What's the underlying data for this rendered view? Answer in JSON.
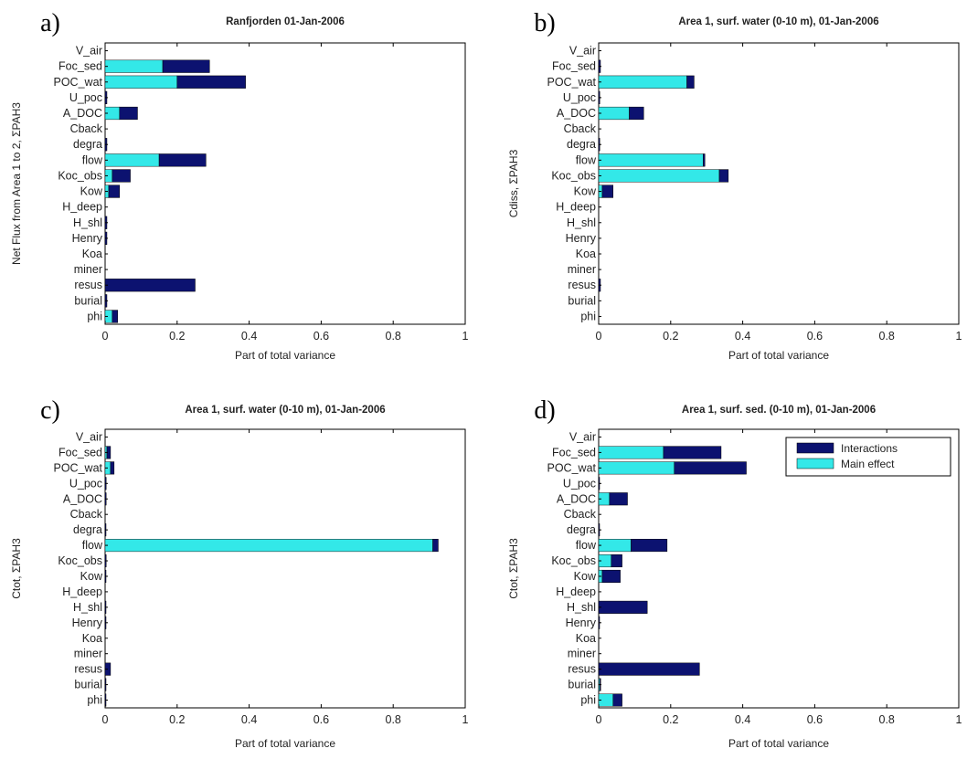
{
  "colors": {
    "main_effect": "#33e8e8",
    "interactions": "#0c1270",
    "axes": "#000000",
    "background": "#ffffff"
  },
  "chart_data": [
    {
      "type": "bar",
      "orientation": "horizontal",
      "stacked": true,
      "panel": "a)",
      "title": "Ranfjorden 01-Jan-2006",
      "xlabel": "Part of total variance",
      "ylabel": "Net Flux from Area 1 to 2, ΣPAH3",
      "xlim": [
        0,
        1
      ],
      "xticks": [
        "0",
        "0.2",
        "0.4",
        "0.6",
        "0.8",
        "1"
      ],
      "categories": [
        "V_air",
        "Foc_sed",
        "POC_wat",
        "U_poc",
        "A_DOC",
        "Cback",
        "degra",
        "flow",
        "Koc_obs",
        "Kow",
        "H_deep",
        "H_shl",
        "Henry",
        "Koa",
        "miner",
        "resus",
        "burial",
        "phi"
      ],
      "series": [
        {
          "role": "main",
          "values": [
            0,
            0.16,
            0.2,
            0,
            0.04,
            0,
            0,
            0.15,
            0.02,
            0.01,
            0,
            0,
            0,
            0,
            0,
            0,
            0,
            0.02
          ]
        },
        {
          "role": "interactions",
          "values": [
            0,
            0.13,
            0.19,
            0.005,
            0.05,
            0,
            0.005,
            0.13,
            0.05,
            0.03,
            0,
            0.005,
            0.005,
            0,
            0,
            0.25,
            0.005,
            0.015
          ]
        }
      ],
      "grid": false
    },
    {
      "type": "bar",
      "orientation": "horizontal",
      "stacked": true,
      "panel": "b)",
      "title": "Area 1, surf. water (0-10 m), 01-Jan-2006",
      "xlabel": "Part of total variance",
      "ylabel": "Cdiss, ΣPAH3",
      "xlim": [
        0,
        1
      ],
      "xticks": [
        "0",
        "0.2",
        "0.4",
        "0.6",
        "0.8",
        "1"
      ],
      "categories": [
        "V_air",
        "Foc_sed",
        "POC_wat",
        "U_poc",
        "A_DOC",
        "Cback",
        "degra",
        "flow",
        "Koc_obs",
        "Kow",
        "H_deep",
        "H_shl",
        "Henry",
        "Koa",
        "miner",
        "resus",
        "burial",
        "phi"
      ],
      "series": [
        {
          "role": "main",
          "values": [
            0,
            0,
            0.245,
            0,
            0.085,
            0,
            0,
            0.29,
            0.335,
            0.01,
            0,
            0,
            0,
            0,
            0,
            0,
            0,
            0
          ]
        },
        {
          "role": "interactions",
          "values": [
            0,
            0.005,
            0.02,
            0.003,
            0.04,
            0,
            0.003,
            0.005,
            0.025,
            0.03,
            0,
            0,
            0,
            0,
            0,
            0.005,
            0,
            0
          ]
        }
      ],
      "grid": false
    },
    {
      "type": "bar",
      "orientation": "horizontal",
      "stacked": true,
      "panel": "c)",
      "title": "Area 1, surf. water (0-10 m), 01-Jan-2006",
      "xlabel": "Part of total variance",
      "ylabel": "Ctot, ΣPAH3",
      "xlim": [
        0,
        1
      ],
      "xticks": [
        "0",
        "0.2",
        "0.4",
        "0.6",
        "0.8",
        "1"
      ],
      "categories": [
        "V_air",
        "Foc_sed",
        "POC_wat",
        "U_poc",
        "A_DOC",
        "Cback",
        "degra",
        "flow",
        "Koc_obs",
        "Kow",
        "H_deep",
        "H_shl",
        "Henry",
        "Koa",
        "miner",
        "resus",
        "burial",
        "phi"
      ],
      "series": [
        {
          "role": "main",
          "values": [
            0,
            0.005,
            0.015,
            0,
            0,
            0,
            0,
            0.91,
            0,
            0,
            0,
            0,
            0,
            0,
            0,
            0,
            0,
            0
          ]
        },
        {
          "role": "interactions",
          "values": [
            0,
            0.01,
            0.01,
            0.003,
            0.003,
            0,
            0.002,
            0.015,
            0.003,
            0.002,
            0,
            0.002,
            0.002,
            0,
            0,
            0.015,
            0.002,
            0.002
          ]
        }
      ],
      "grid": false
    },
    {
      "type": "bar",
      "orientation": "horizontal",
      "stacked": true,
      "panel": "d)",
      "title": "Area 1, surf. sed. (0-10 m), 01-Jan-2006",
      "xlabel": "Part of total variance",
      "ylabel": "Ctot, ΣPAH3",
      "xlim": [
        0,
        1
      ],
      "xticks": [
        "0",
        "0.2",
        "0.4",
        "0.6",
        "0.8",
        "1"
      ],
      "categories": [
        "V_air",
        "Foc_sed",
        "POC_wat",
        "U_poc",
        "A_DOC",
        "Cback",
        "degra",
        "flow",
        "Koc_obs",
        "Kow",
        "H_deep",
        "H_shl",
        "Henry",
        "Koa",
        "miner",
        "resus",
        "burial",
        "phi"
      ],
      "series": [
        {
          "role": "main",
          "values": [
            0,
            0.18,
            0.21,
            0,
            0.03,
            0,
            0,
            0.09,
            0.035,
            0.01,
            0,
            0,
            0,
            0,
            0,
            0,
            0.003,
            0.04
          ]
        },
        {
          "role": "interactions",
          "values": [
            0,
            0.16,
            0.2,
            0.002,
            0.05,
            0,
            0.002,
            0.1,
            0.03,
            0.05,
            0,
            0.135,
            0.002,
            0,
            0,
            0.28,
            0.002,
            0.025
          ]
        }
      ],
      "legend": {
        "position": "top-right",
        "entries": [
          "Interactions",
          "Main effect"
        ]
      },
      "grid": false
    }
  ]
}
